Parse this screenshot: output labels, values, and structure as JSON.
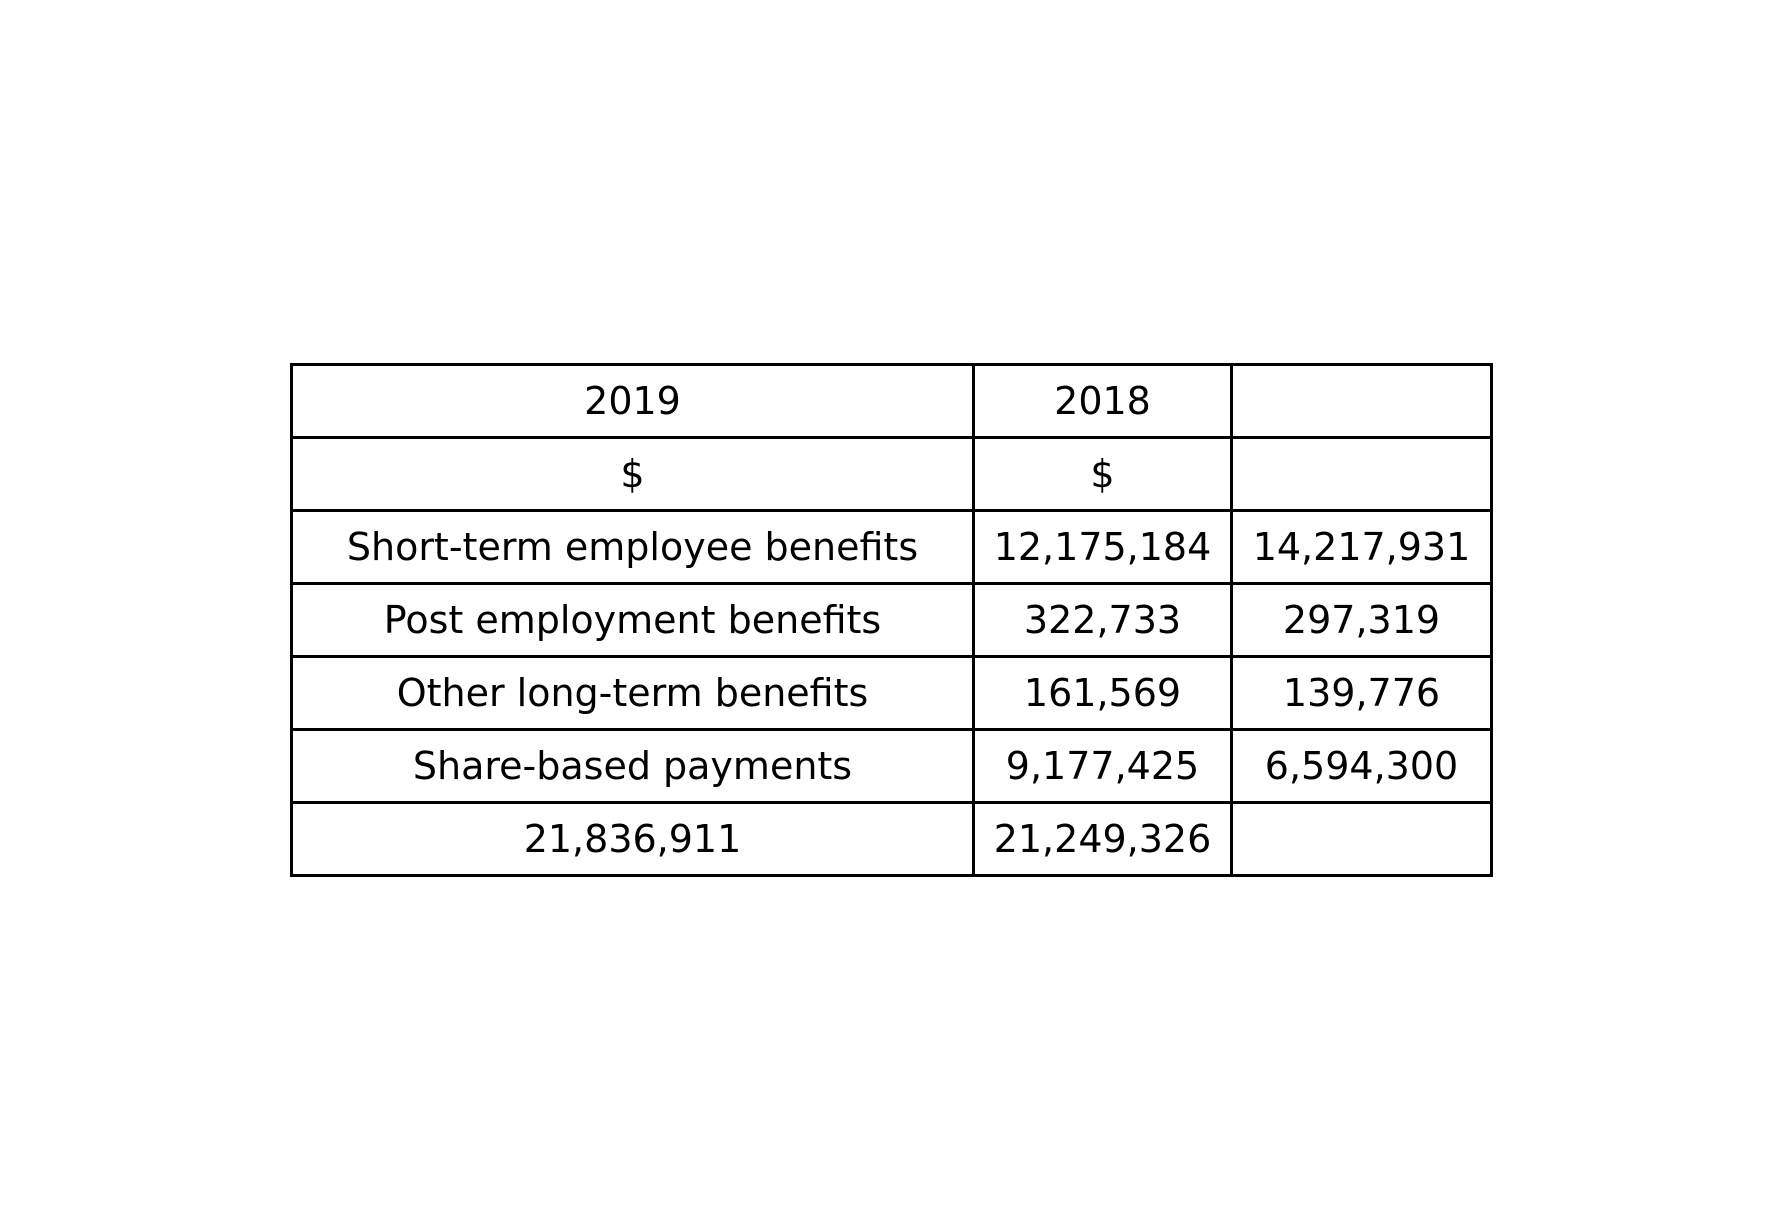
{
  "table": {
    "rows": [
      [
        "2019",
        "2018",
        ""
      ],
      [
        "$",
        "$",
        ""
      ],
      [
        "Short-term employee benefits",
        "12,175,184",
        "14,217,931"
      ],
      [
        "Post employment benefits",
        "322,733",
        "297,319"
      ],
      [
        "Other long-term benefits",
        "161,569",
        "139,776"
      ],
      [
        "Share-based payments",
        "9,177,425",
        "6,594,300"
      ],
      [
        "21,836,911",
        "21,249,326",
        ""
      ]
    ]
  }
}
